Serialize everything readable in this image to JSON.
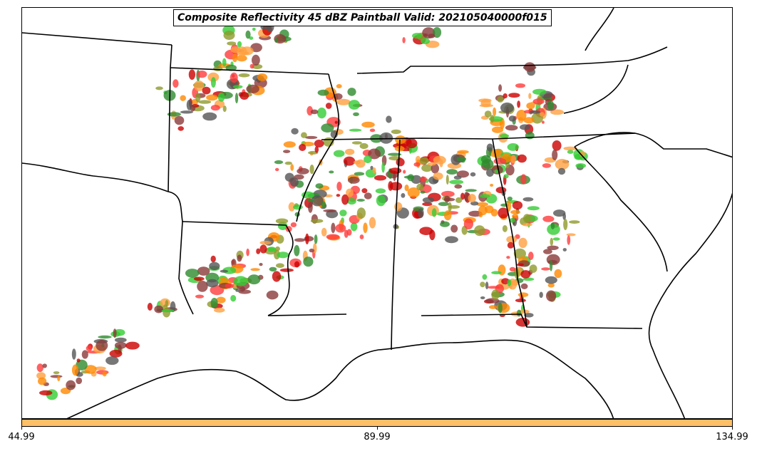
{
  "title": "Composite Reflectivity 45 dBZ Paintball Valid: 202105040000f015",
  "colorbar": {
    "color": "#ffbf66",
    "ticks": [
      "44.99",
      "89.99",
      "134.99"
    ]
  },
  "colors": {
    "boundary": "#000000",
    "paintball": [
      "#33cc33",
      "#2e8b2e",
      "#8f9a2a",
      "#ff8800",
      "#ffa040",
      "#ff3b3b",
      "#cc0000",
      "#555555",
      "#8b3a3a"
    ]
  }
}
